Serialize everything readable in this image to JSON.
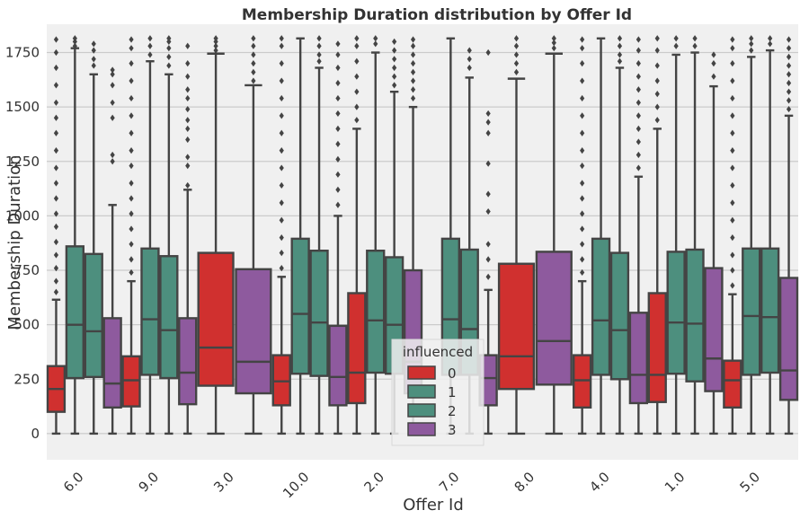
{
  "chart_data": {
    "type": "box",
    "title": "Membership Duration distribution by Offer Id",
    "xlabel": "Offer Id",
    "ylabel": "Membership Duration",
    "ylim": [
      -120,
      1880
    ],
    "yticks": [
      0,
      250,
      500,
      750,
      1000,
      1250,
      1500,
      1750
    ],
    "grid": "horizontal",
    "categories": [
      "6.0",
      "9.0",
      "3.0",
      "10.0",
      "2.0",
      "7.0",
      "8.0",
      "4.0",
      "1.0",
      "5.0"
    ],
    "legend": {
      "title": "influenced",
      "placement": "lower-center",
      "entries": [
        "0",
        "1",
        "2",
        "3"
      ]
    },
    "colors": {
      "0": "#d0302f",
      "1": "#4d8f7e",
      "2": "#4d8f7e",
      "3": "#8e5a9e",
      "line": "#444444",
      "background": "#f0f0f0",
      "grid": "#cbcbcb"
    },
    "series": [
      {
        "name": "0",
        "boxes": [
          {
            "category": "6.0",
            "q1": 100,
            "median": 205,
            "q3": 310,
            "whislo": 0,
            "whishi": 615,
            "fliers": [
              650,
              700,
              760,
              820,
              880,
              950,
              1010,
              1080,
              1150,
              1220,
              1300,
              1380,
              1450,
              1520,
              1600,
              1680,
              1750,
              1810
            ]
          },
          {
            "category": "9.0",
            "q1": 125,
            "median": 245,
            "q3": 355,
            "whislo": 0,
            "whishi": 700,
            "fliers": [
              740,
              800,
              870,
              940,
              1010,
              1080,
              1150,
              1230,
              1300,
              1380,
              1460,
              1540,
              1620,
              1700,
              1770,
              1810
            ]
          },
          {
            "category": "10.0",
            "q1": 130,
            "median": 240,
            "q3": 360,
            "whislo": 0,
            "whishi": 720,
            "fliers": [
              760,
              830,
              900,
              980,
              1060,
              1140,
              1220,
              1300,
              1380,
              1460,
              1540,
              1620,
              1700,
              1780,
              1815
            ]
          },
          {
            "category": "2.0",
            "q1": 140,
            "median": 280,
            "q3": 645,
            "whislo": 0,
            "whishi": 1400,
            "fliers": [
              1440,
              1500,
              1570,
              1640,
              1710,
              1780,
              1815
            ]
          },
          {
            "category": "4.0",
            "q1": 120,
            "median": 245,
            "q3": 360,
            "whislo": 0,
            "whishi": 700,
            "fliers": [
              740,
              800,
              870,
              940,
              1010,
              1080,
              1150,
              1230,
              1300,
              1380,
              1460,
              1540,
              1620,
              1700,
              1770,
              1810
            ]
          },
          {
            "category": "1.0",
            "q1": 145,
            "median": 270,
            "q3": 645,
            "whislo": 0,
            "whishi": 1400,
            "fliers": [
              1440,
              1500,
              1560,
              1620,
              1690,
              1760,
              1815
            ]
          },
          {
            "category": "5.0",
            "q1": 120,
            "median": 245,
            "q3": 335,
            "whislo": 0,
            "whishi": 640,
            "fliers": [
              680,
              750,
              820,
              900,
              980,
              1060,
              1140,
              1220,
              1300,
              1380,
              1460,
              1540,
              1620,
              1700,
              1770,
              1810
            ]
          }
        ]
      },
      {
        "name": "1",
        "boxes": [
          {
            "category": "6.0",
            "q1": 255,
            "median": 500,
            "q3": 860,
            "whislo": 0,
            "whishi": 1770,
            "fliers": [
              1780,
              1800,
              1815
            ]
          },
          {
            "category": "9.0",
            "q1": 270,
            "median": 525,
            "q3": 850,
            "whislo": 0,
            "whishi": 1710,
            "fliers": [
              1740,
              1780,
              1815
            ]
          },
          {
            "category": "10.0",
            "q1": 275,
            "median": 550,
            "q3": 895,
            "whislo": 0,
            "whishi": 1815,
            "fliers": []
          },
          {
            "category": "2.0",
            "q1": 280,
            "median": 520,
            "q3": 840,
            "whislo": 0,
            "whishi": 1750,
            "fliers": [
              1790,
              1815
            ]
          },
          {
            "category": "7.0",
            "q1": 270,
            "median": 525,
            "q3": 895,
            "whislo": 0,
            "whishi": 1815,
            "fliers": []
          },
          {
            "category": "4.0",
            "q1": 270,
            "median": 520,
            "q3": 895,
            "whislo": 0,
            "whishi": 1815,
            "fliers": []
          },
          {
            "category": "1.0",
            "q1": 275,
            "median": 510,
            "q3": 835,
            "whislo": 0,
            "whishi": 1740,
            "fliers": [
              1780,
              1815
            ]
          },
          {
            "category": "5.0",
            "q1": 270,
            "median": 540,
            "q3": 850,
            "whislo": 0,
            "whishi": 1730,
            "fliers": [
              1760,
              1790,
              1815
            ]
          }
        ]
      },
      {
        "name": "2",
        "boxes": [
          {
            "category": "6.0",
            "q1": 260,
            "median": 470,
            "q3": 825,
            "whislo": 0,
            "whishi": 1650,
            "fliers": [
              1690,
              1720,
              1760,
              1790
            ]
          },
          {
            "category": "9.0",
            "q1": 255,
            "median": 475,
            "q3": 815,
            "whislo": 0,
            "whishi": 1650,
            "fliers": [
              1690,
              1730,
              1770,
              1800,
              1815
            ]
          },
          {
            "category": "10.0",
            "q1": 265,
            "median": 510,
            "q3": 840,
            "whislo": 0,
            "whishi": 1680,
            "fliers": [
              1710,
              1740,
              1780,
              1815
            ]
          },
          {
            "category": "2.0",
            "q1": 275,
            "median": 500,
            "q3": 810,
            "whislo": 0,
            "whishi": 1570,
            "fliers": [
              1600,
              1640,
              1680,
              1720,
              1760,
              1800
            ]
          },
          {
            "category": "7.0",
            "q1": 270,
            "median": 480,
            "q3": 845,
            "whislo": 0,
            "whishi": 1635,
            "fliers": [
              1680,
              1720,
              1760
            ]
          },
          {
            "category": "4.0",
            "q1": 250,
            "median": 475,
            "q3": 830,
            "whislo": 0,
            "whishi": 1680,
            "fliers": [
              1710,
              1740,
              1780,
              1815
            ]
          },
          {
            "category": "1.0",
            "q1": 240,
            "median": 505,
            "q3": 845,
            "whislo": 0,
            "whishi": 1750,
            "fliers": [
              1780,
              1815
            ]
          },
          {
            "category": "5.0",
            "q1": 280,
            "median": 535,
            "q3": 850,
            "whislo": 0,
            "whishi": 1760,
            "fliers": [
              1790,
              1815
            ]
          }
        ]
      },
      {
        "name": "3",
        "boxes": [
          {
            "category": "6.0",
            "q1": 120,
            "median": 230,
            "q3": 530,
            "whislo": 0,
            "whishi": 1050,
            "fliers": [
              1250,
              1280,
              1450,
              1520,
              1600,
              1650,
              1670
            ]
          },
          {
            "category": "9.0",
            "q1": 135,
            "median": 280,
            "q3": 530,
            "whislo": 0,
            "whishi": 1120,
            "fliers": [
              1140,
              1230,
              1270,
              1350,
              1400,
              1440,
              1490,
              1540,
              1580,
              1640,
              1700,
              1780
            ]
          },
          {
            "category": "10.0",
            "q1": 130,
            "median": 260,
            "q3": 495,
            "whislo": 0,
            "whishi": 1000,
            "fliers": [
              1050,
              1120,
              1190,
              1260,
              1330,
              1400,
              1470,
              1540,
              1610,
              1680,
              1740,
              1790
            ]
          },
          {
            "category": "2.0",
            "q1": 185,
            "median": 330,
            "q3": 750,
            "whislo": 0,
            "whishi": 1500,
            "fliers": [
              1540,
              1580,
              1620,
              1660,
              1700,
              1740,
              1780,
              1810
            ]
          },
          {
            "category": "7.0",
            "q1": 130,
            "median": 255,
            "q3": 360,
            "whislo": 0,
            "whishi": 660,
            "fliers": [
              720,
              800,
              870,
              1020,
              1100,
              1240,
              1380,
              1430,
              1470,
              1750
            ]
          },
          {
            "category": "4.0",
            "q1": 140,
            "median": 270,
            "q3": 555,
            "whislo": 0,
            "whishi": 1180,
            "fliers": [
              1220,
              1280,
              1340,
              1400,
              1460,
              1520,
              1580,
              1640,
              1700,
              1760,
              1810
            ]
          },
          {
            "category": "1.0",
            "q1": 195,
            "median": 345,
            "q3": 760,
            "whislo": 0,
            "whishi": 1595,
            "fliers": [
              1640,
              1700,
              1740
            ]
          },
          {
            "category": "5.0",
            "q1": 155,
            "median": 290,
            "q3": 715,
            "whislo": 0,
            "whishi": 1460,
            "fliers": [
              1490,
              1530,
              1570,
              1610,
              1650,
              1690,
              1730,
              1770,
              1810
            ]
          }
        ]
      }
    ],
    "single_group_boxes": [
      {
        "category": "3.0",
        "series": "0",
        "q1": 220,
        "median": 395,
        "q3": 830,
        "whislo": 0,
        "whishi": 1745,
        "fliers": [
          1760,
          1780,
          1800,
          1815
        ]
      },
      {
        "category": "3.0",
        "series": "3",
        "q1": 185,
        "median": 330,
        "q3": 755,
        "whislo": 0,
        "whishi": 1600,
        "fliers": [
          1620,
          1660,
          1700,
          1740,
          1780,
          1815
        ]
      },
      {
        "category": "8.0",
        "series": "0",
        "q1": 205,
        "median": 355,
        "q3": 780,
        "whislo": 0,
        "whishi": 1630,
        "fliers": [
          1660,
          1700,
          1740,
          1780,
          1815
        ]
      },
      {
        "category": "8.0",
        "series": "3",
        "q1": 225,
        "median": 425,
        "q3": 835,
        "whislo": 0,
        "whishi": 1745,
        "fliers": [
          1770,
          1795,
          1815
        ]
      }
    ]
  }
}
